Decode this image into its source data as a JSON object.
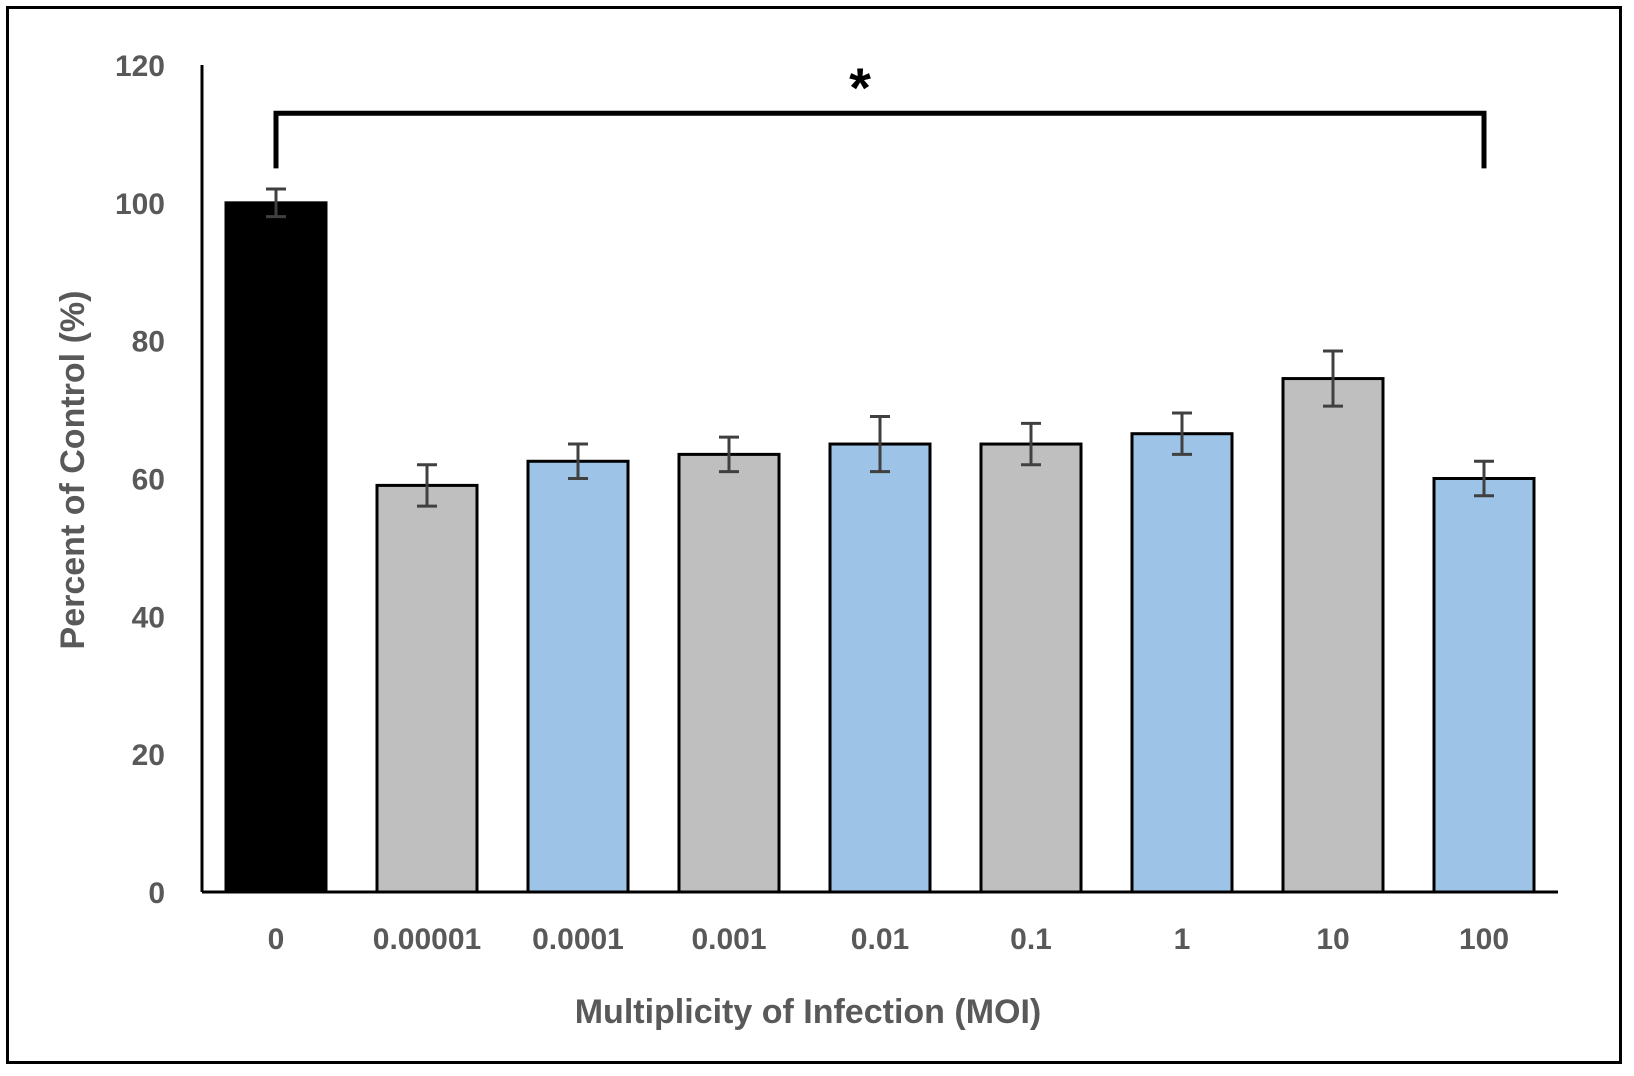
{
  "chart_data": {
    "type": "bar",
    "title": "",
    "xlabel": "Multiplicity of Infection (MOI)",
    "ylabel": "Percent of Control (%)",
    "ylim": [
      0,
      120
    ],
    "yticks": [
      0,
      20,
      40,
      60,
      80,
      100,
      120
    ],
    "categories": [
      "0",
      "0.00001",
      "0.0001",
      "0.001",
      "0.01",
      "0.1",
      "1",
      "10",
      "100"
    ],
    "values": [
      100,
      59,
      62.5,
      63.5,
      65,
      65,
      66.5,
      74.5,
      60
    ],
    "errors": [
      2,
      3,
      2.5,
      2.5,
      4,
      3,
      3,
      4,
      2.5
    ],
    "bar_colors": [
      "#000000",
      "#bfbfbf",
      "#9dc3e6",
      "#bfbfbf",
      "#9dc3e6",
      "#bfbfbf",
      "#9dc3e6",
      "#bfbfbf",
      "#9dc3e6"
    ],
    "significance": {
      "label": "*",
      "from_category": "0",
      "to_category": "100",
      "level": 113
    }
  }
}
